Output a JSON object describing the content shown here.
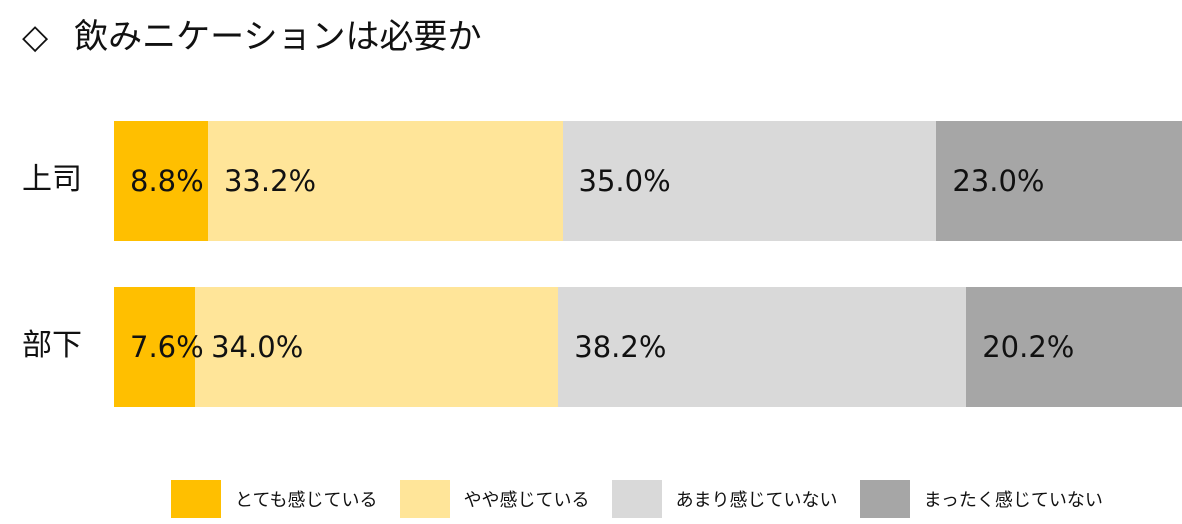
{
  "title": {
    "marker": "◇",
    "text": "飲みニケーションは必要か"
  },
  "chart_data": {
    "type": "bar",
    "orientation": "horizontal",
    "stacked": true,
    "normalized": true,
    "categories": [
      "上司",
      "部下"
    ],
    "series": [
      {
        "name": "とても感じている",
        "color": "#FFBF00",
        "values": [
          8.8,
          7.6
        ],
        "labels": [
          "8.8%",
          "7.6%"
        ]
      },
      {
        "name": "やや感じている",
        "color": "#FFE599",
        "values": [
          33.2,
          34.0
        ],
        "labels": [
          "33.2%",
          "34.0%"
        ]
      },
      {
        "name": "あまり感じていない",
        "color": "#D9D9D9",
        "values": [
          35.0,
          38.2
        ],
        "labels": [
          "35.0%",
          "38.2%"
        ]
      },
      {
        "name": "まったく感じていない",
        "color": "#A6A6A6",
        "values": [
          23.0,
          20.2
        ],
        "labels": [
          "23.0%",
          "20.2%"
        ]
      }
    ],
    "xlim": [
      0,
      100
    ],
    "grid": false,
    "legend_position": "bottom"
  }
}
